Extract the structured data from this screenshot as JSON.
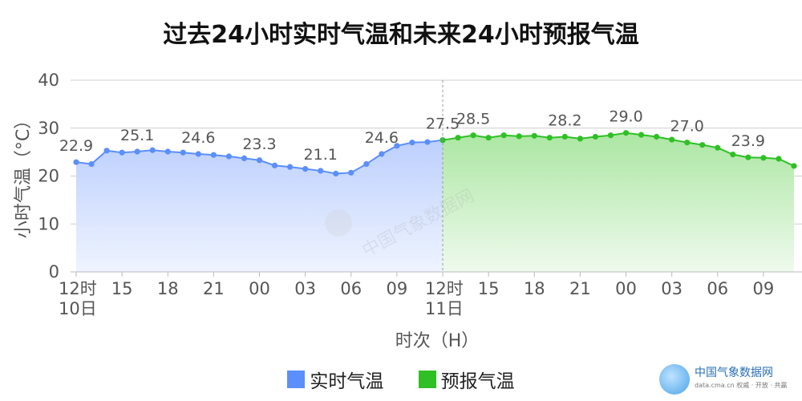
{
  "title": "过去24小时实时气温和未来24小时预报气温",
  "chart_data": {
    "type": "area",
    "title": "过去24小时实时气温和未来24小时预报气温",
    "xlabel": "时次（H）",
    "ylabel": "小时气温（°C）",
    "ylim": [
      0,
      40
    ],
    "yticks": [
      "0",
      "10",
      "20",
      "30",
      "40"
    ],
    "xticks": [
      {
        "i": 0,
        "label": "12时",
        "sub": "10日"
      },
      {
        "i": 3,
        "label": "15"
      },
      {
        "i": 6,
        "label": "18"
      },
      {
        "i": 9,
        "label": "21"
      },
      {
        "i": 12,
        "label": "00"
      },
      {
        "i": 15,
        "label": "03"
      },
      {
        "i": 18,
        "label": "06"
      },
      {
        "i": 21,
        "label": "09"
      },
      {
        "i": 24,
        "label": "12时",
        "sub": "11日"
      },
      {
        "i": 27,
        "label": "15"
      },
      {
        "i": 30,
        "label": "18"
      },
      {
        "i": 33,
        "label": "21"
      },
      {
        "i": 36,
        "label": "00"
      },
      {
        "i": 39,
        "label": "03"
      },
      {
        "i": 42,
        "label": "06"
      },
      {
        "i": 45,
        "label": "09"
      }
    ],
    "grid": true,
    "legend_position": "bottom",
    "series": [
      {
        "name": "实时气温",
        "color": "#5b8ff9",
        "fill": "#c9d9ff",
        "start": 0,
        "values": [
          22.9,
          22.5,
          25.3,
          24.9,
          25.1,
          25.4,
          25.1,
          24.9,
          24.6,
          24.4,
          24.1,
          23.7,
          23.3,
          22.2,
          21.9,
          21.5,
          21.1,
          20.5,
          20.7,
          22.5,
          24.6,
          26.3,
          27.0,
          27.1,
          27.5
        ],
        "labels": [
          {
            "i": 0,
            "text": "22.9"
          },
          {
            "i": 4,
            "text": "25.1"
          },
          {
            "i": 8,
            "text": "24.6"
          },
          {
            "i": 12,
            "text": "23.3"
          },
          {
            "i": 16,
            "text": "21.1"
          },
          {
            "i": 20,
            "text": "24.6"
          },
          {
            "i": 24,
            "text": "27.5"
          }
        ]
      },
      {
        "name": "预报气温",
        "color": "#2fc025",
        "fill": "#b7eab0",
        "start": 24,
        "values": [
          27.5,
          28.0,
          28.5,
          28.0,
          28.5,
          28.3,
          28.4,
          28.0,
          28.2,
          27.8,
          28.2,
          28.5,
          29.0,
          28.6,
          28.2,
          27.6,
          27.0,
          26.5,
          25.9,
          24.5,
          23.9,
          23.8,
          23.6,
          22.1
        ],
        "labels": [
          {
            "i": 26,
            "text": "28.5"
          },
          {
            "i": 32,
            "text": "28.2"
          },
          {
            "i": 36,
            "text": "29.0"
          },
          {
            "i": 40,
            "text": "27.0"
          },
          {
            "i": 44,
            "text": "23.9"
          }
        ]
      }
    ]
  },
  "legend": {
    "items": [
      "实时气温",
      "预报气温"
    ]
  },
  "watermark": "中国气象数据网",
  "logo": {
    "name": "中国气象数据网",
    "sub": "data.cma.cn 权威 · 开放 · 共赢"
  }
}
